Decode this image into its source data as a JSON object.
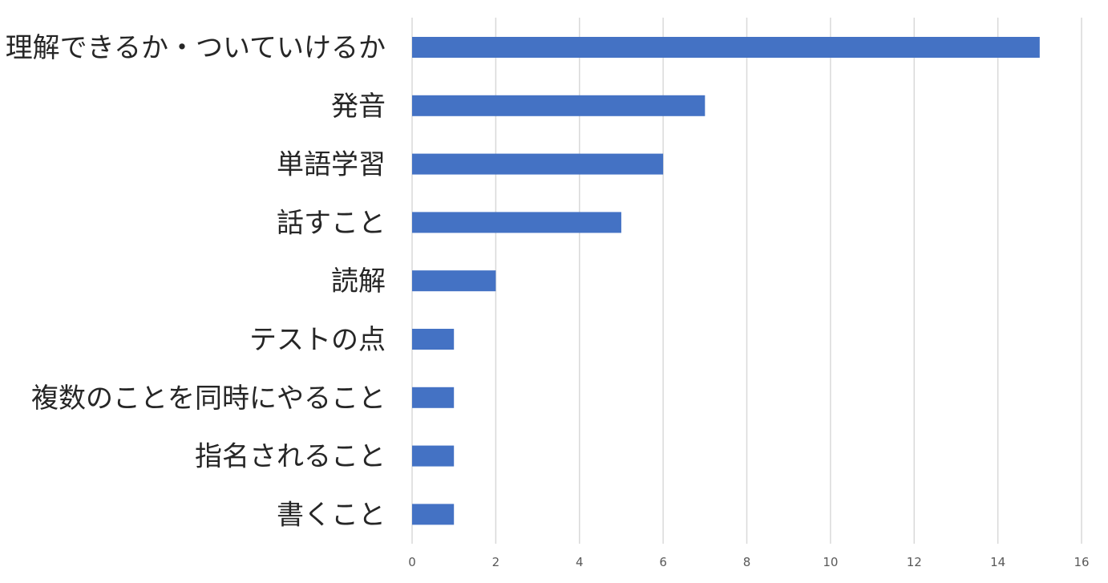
{
  "chart_data": {
    "type": "bar",
    "orientation": "horizontal",
    "categories": [
      "理解できるか・ついていけるか",
      "発音",
      "単語学習",
      "話すこと",
      "読解",
      "テストの点",
      "複数のことを同時にやること",
      "指名されること",
      "書くこと"
    ],
    "values": [
      15,
      7,
      6,
      5,
      2,
      1,
      1,
      1,
      1
    ],
    "xlim": [
      0,
      16
    ],
    "xticks": [
      0,
      2,
      4,
      6,
      8,
      10,
      12,
      14,
      16
    ],
    "title": "",
    "xlabel": "",
    "ylabel": "",
    "grid": "vertical",
    "legend": "none",
    "bar_color": "#4472c4"
  }
}
